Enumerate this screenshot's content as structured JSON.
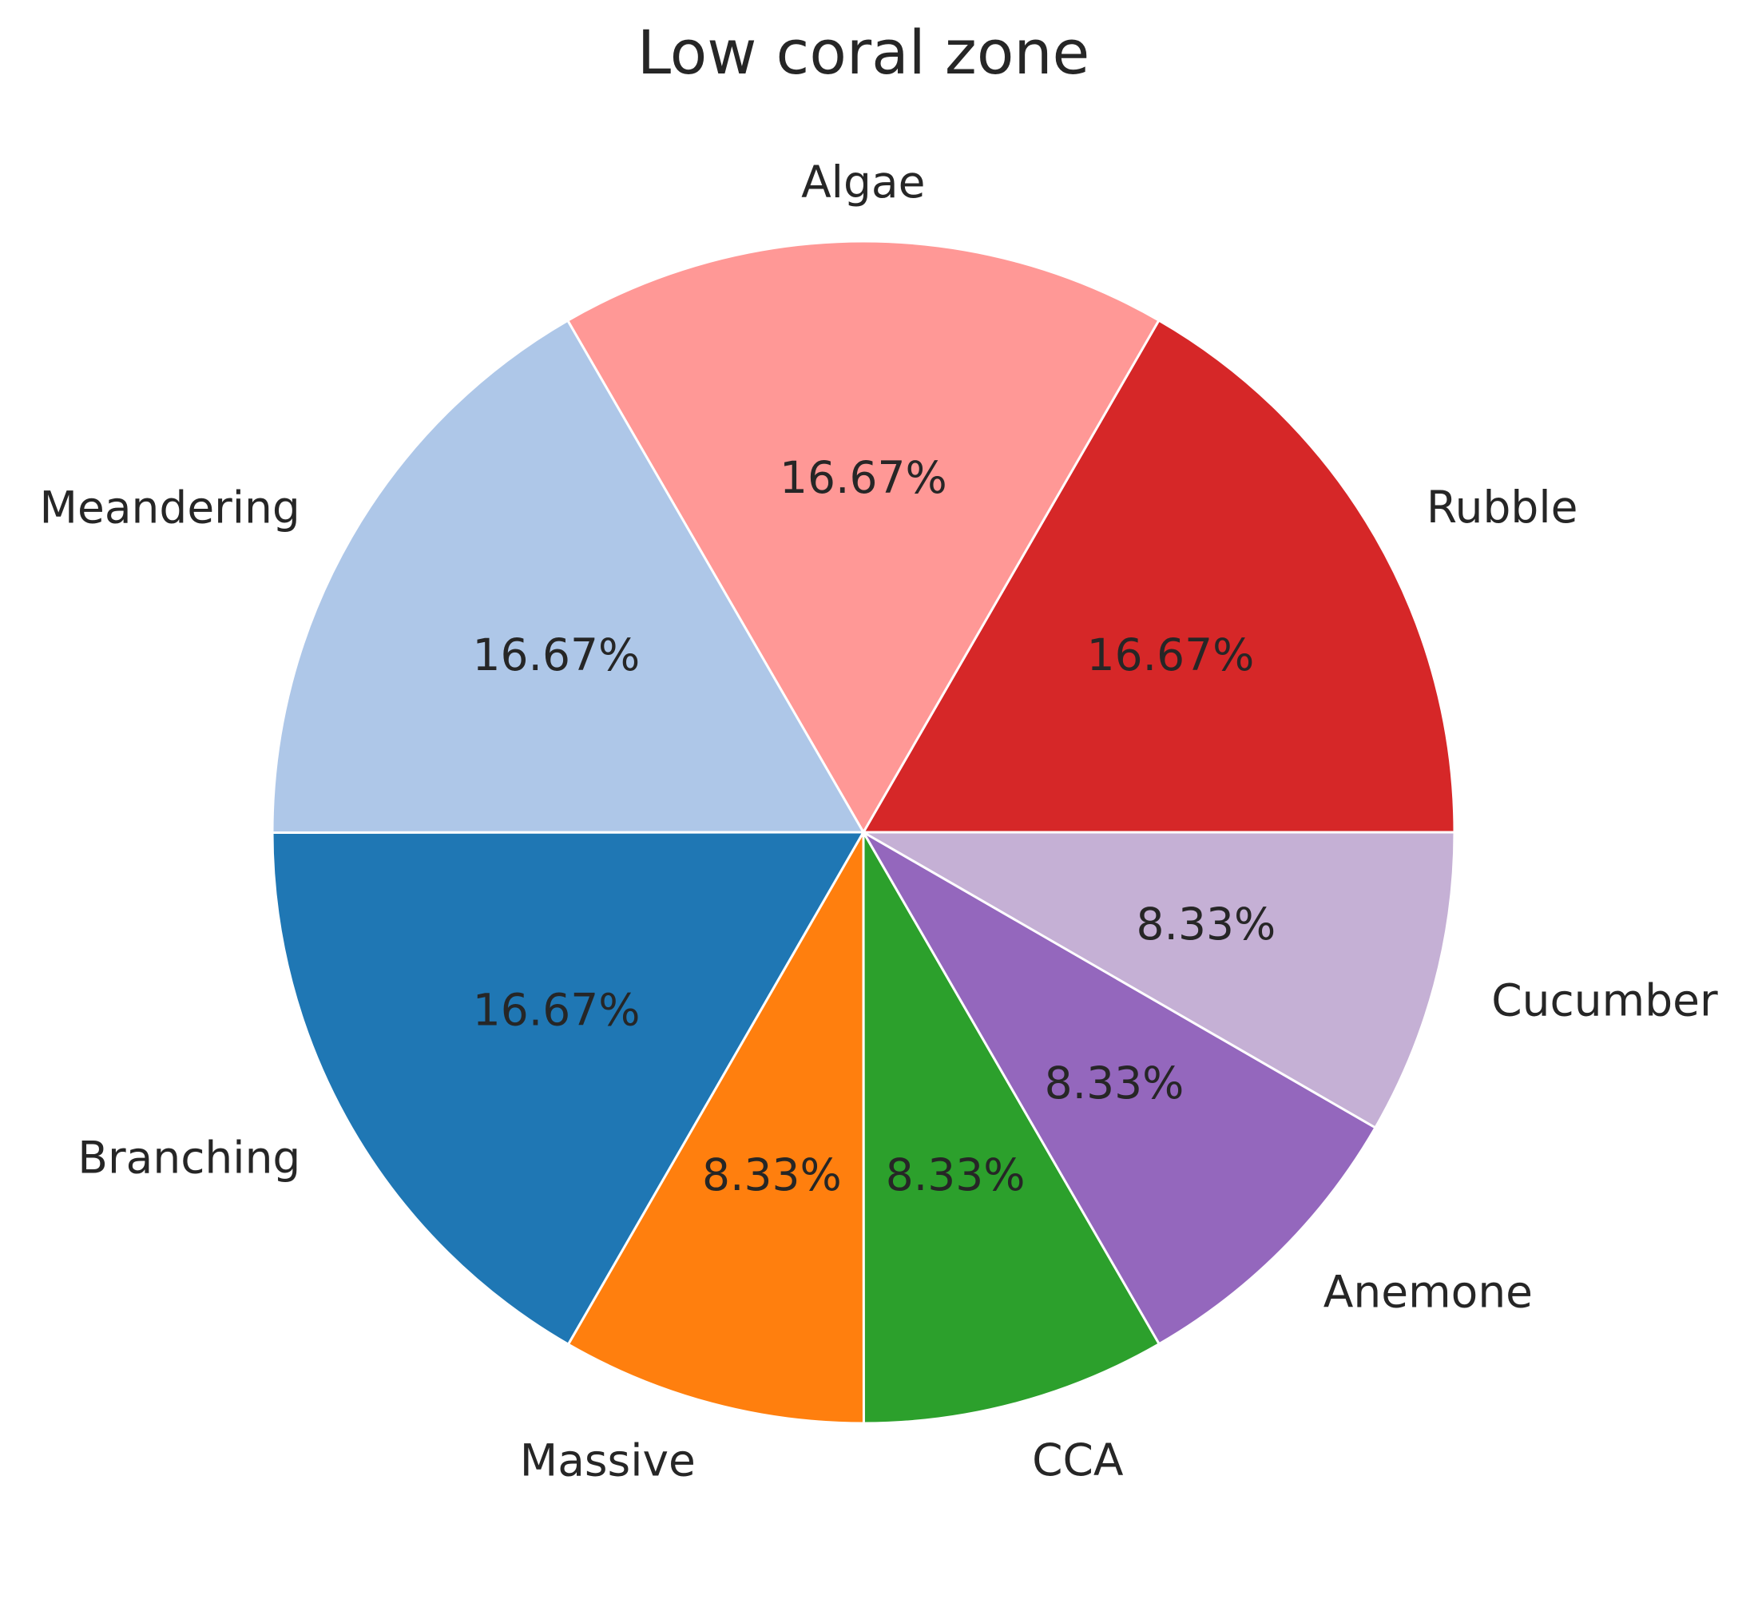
{
  "chart_data": {
    "type": "pie",
    "title": "Low coral zone",
    "slices": [
      {
        "label": "Rubble",
        "value": 16.67,
        "pct_text": "16.67%",
        "color": "#d62728"
      },
      {
        "label": "Algae",
        "value": 16.67,
        "pct_text": "16.67%",
        "color": "#ff9896"
      },
      {
        "label": "Meandering",
        "value": 16.67,
        "pct_text": "16.67%",
        "color": "#aec7e8"
      },
      {
        "label": "Branching",
        "value": 16.67,
        "pct_text": "16.67%",
        "color": "#1f77b4"
      },
      {
        "label": "Massive",
        "value": 8.33,
        "pct_text": "8.33%",
        "color": "#ff7f0e"
      },
      {
        "label": "CCA",
        "value": 8.33,
        "pct_text": "8.33%",
        "color": "#2ca02c"
      },
      {
        "label": "Anemone",
        "value": 8.33,
        "pct_text": "8.33%",
        "color": "#9467bd"
      },
      {
        "label": "Cucumber",
        "value": 8.33,
        "pct_text": "8.33%",
        "color": "#c5b0d5"
      }
    ],
    "start_angle_deg": 0,
    "direction": "counterclockwise",
    "edge_color": "#ffffff"
  }
}
